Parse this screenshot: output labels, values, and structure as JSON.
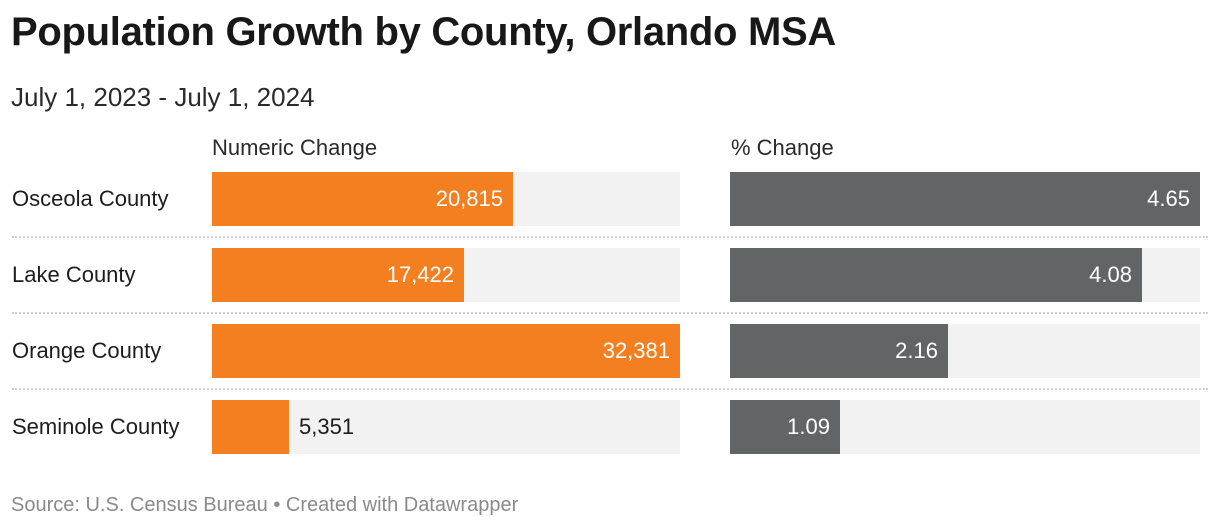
{
  "title": "Population Growth by County, Orlando MSA",
  "subtitle": "July 1, 2023 - July 1, 2024",
  "footer": "Source: U.S. Census Bureau • Created with Datawrapper",
  "colors": {
    "numeric_bar": "#f47f20",
    "percent_bar": "#616566",
    "track": "#f2f2f2"
  },
  "chart_data": {
    "type": "bar",
    "orientation": "horizontal",
    "categories": [
      "Osceola County",
      "Lake County",
      "Orange County",
      "Seminole County"
    ],
    "series": [
      {
        "name": "Numeric Change",
        "values": [
          20815,
          17422,
          32381,
          5351
        ],
        "labels": [
          "20,815",
          "17,422",
          "32,381",
          "5,351"
        ],
        "max": 32381
      },
      {
        "name": "% Change",
        "values": [
          4.65,
          4.08,
          2.16,
          1.09
        ],
        "labels": [
          "4.65",
          "4.08",
          "2.16",
          "1.09"
        ],
        "max": 4.65
      }
    ],
    "title": "Population Growth by County, Orlando MSA",
    "subtitle": "July 1, 2023 - July 1, 2024"
  }
}
